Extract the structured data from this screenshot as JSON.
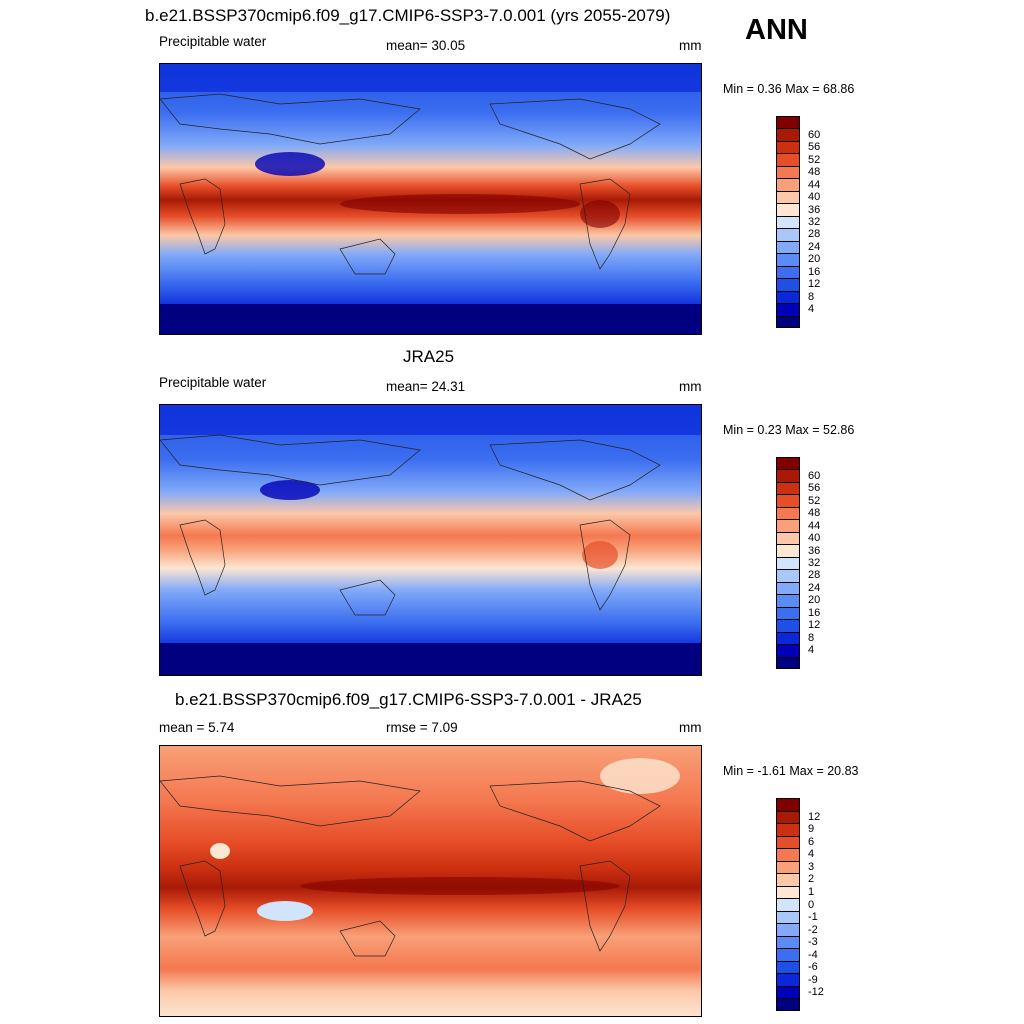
{
  "season": "ANN",
  "panels": [
    {
      "title": "b.e21.BSSP370cmip6.f09_g17.CMIP6-SSP3-7.0.001 (yrs 2055-2079)",
      "left_label": "Precipitable water",
      "center_label": "mean=  30.05",
      "units": "mm",
      "minmax": "Min =   0.36 Max =  68.86",
      "colorbar": {
        "colors": [
          "#000080",
          "#0000b8",
          "#0a28d8",
          "#1e50e6",
          "#3c6ef0",
          "#5a8cf6",
          "#82aaf8",
          "#a8c8fa",
          "#d2e4fc",
          "#fde6d2",
          "#fcc8a8",
          "#f8a078",
          "#f47850",
          "#e64e28",
          "#cc3010",
          "#a81a06",
          "#800000"
        ],
        "labels": [
          "4",
          "8",
          "12",
          "16",
          "20",
          "24",
          "28",
          "32",
          "36",
          "40",
          "44",
          "48",
          "52",
          "56",
          "60"
        ]
      }
    },
    {
      "title": "JRA25",
      "left_label": "Precipitable water",
      "center_label": "mean=  24.31",
      "units": "mm",
      "minmax": "Min =   0.23 Max =  52.86",
      "colorbar": {
        "colors": [
          "#000080",
          "#0000b8",
          "#0a28d8",
          "#1e50e6",
          "#3c6ef0",
          "#5a8cf6",
          "#82aaf8",
          "#a8c8fa",
          "#d2e4fc",
          "#fde6d2",
          "#fcc8a8",
          "#f8a078",
          "#f47850",
          "#e64e28",
          "#cc3010",
          "#a81a06",
          "#800000"
        ],
        "labels": [
          "4",
          "8",
          "12",
          "16",
          "20",
          "24",
          "28",
          "32",
          "36",
          "40",
          "44",
          "48",
          "52",
          "56",
          "60"
        ]
      }
    },
    {
      "title": "b.e21.BSSP370cmip6.f09_g17.CMIP6-SSP3-7.0.001 - JRA25",
      "left_label": "mean =   5.74",
      "center_label": "rmse =   7.09",
      "units": "mm",
      "minmax": "Min =  -1.61 Max =  20.83",
      "colorbar": {
        "colors": [
          "#000080",
          "#0000b8",
          "#0a28d8",
          "#1e50e6",
          "#3c6ef0",
          "#5a8cf6",
          "#82aaf8",
          "#a8c8fa",
          "#d2e4fc",
          "#fde6d2",
          "#fcc8a8",
          "#f8a078",
          "#f47850",
          "#e64e28",
          "#cc3010",
          "#a81a06",
          "#800000"
        ],
        "labels": [
          "-12",
          "-9",
          "-6",
          "-4",
          "-3",
          "-2",
          "-1",
          "0",
          "1",
          "2",
          "3",
          "4",
          "6",
          "9",
          "12"
        ]
      }
    }
  ]
}
